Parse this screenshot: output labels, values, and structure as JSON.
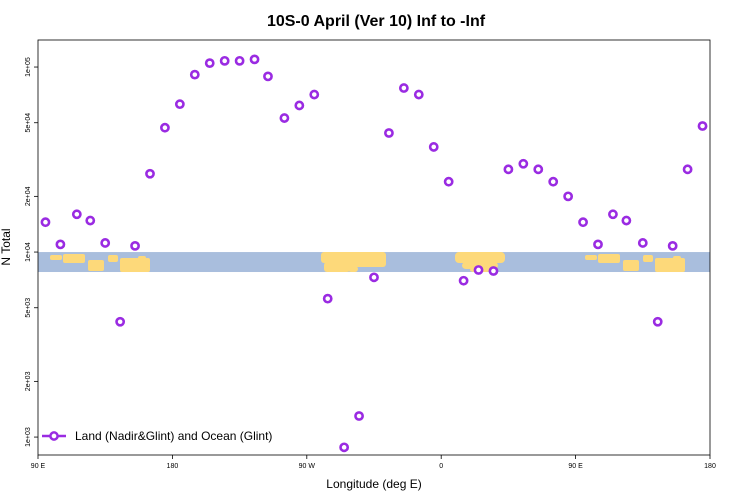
{
  "chart_data": {
    "type": "scatter",
    "title": "10S-0 April (Ver 10)   Inf to -Inf",
    "xlabel": "Longitude (deg E)",
    "ylabel": "N Total",
    "y_scale": "log",
    "xlim": [
      90,
      540
    ],
    "ylim": [
      800,
      140000
    ],
    "x_ticks": [
      {
        "value": 90,
        "label": "90 E"
      },
      {
        "value": 180,
        "label": "180"
      },
      {
        "value": 270,
        "label": "90 W"
      },
      {
        "value": 360,
        "label": "0"
      },
      {
        "value": 450,
        "label": "90 E"
      },
      {
        "value": 540,
        "label": "180"
      }
    ],
    "y_ticks": [
      {
        "value": 1000,
        "label": "1e+03"
      },
      {
        "value": 2000,
        "label": "2e+03"
      },
      {
        "value": 5000,
        "label": "5e+03"
      },
      {
        "value": 10000,
        "label": "1e+04"
      },
      {
        "value": 20000,
        "label": "2e+04"
      },
      {
        "value": 50000,
        "label": "5e+04"
      },
      {
        "value": 100000,
        "label": "1e+05"
      }
    ],
    "grid": false,
    "legend_position": "bottom-left",
    "band": {
      "y_min": 7800,
      "y_max": 10000,
      "color": "#a9bedd",
      "land_color": "#fdd97a"
    },
    "series": [
      {
        "name": "Land (Nadir&Glint) and Ocean (Glint)",
        "color": "#9a2be2",
        "marker": "open-circle",
        "x": [
          95,
          105,
          116,
          125,
          135,
          145,
          155,
          165,
          175,
          185,
          195,
          205,
          215,
          225,
          235,
          244,
          255,
          265,
          275,
          284,
          295,
          305,
          315,
          325,
          335,
          345,
          355,
          365,
          375,
          385,
          395,
          405,
          415,
          425,
          435,
          445,
          455,
          465,
          475,
          484,
          495,
          505,
          515,
          525,
          535
        ],
        "y": [
          14500,
          11000,
          16000,
          14800,
          11200,
          4200,
          10800,
          26500,
          47000,
          63000,
          91000,
          105000,
          108000,
          108000,
          110000,
          89000,
          53000,
          62000,
          71000,
          5600,
          880,
          1300,
          7300,
          44000,
          77000,
          71000,
          37000,
          24000,
          7000,
          8000,
          7900,
          28000,
          30000,
          28000,
          24000,
          20000,
          14500,
          11000,
          16000,
          14800,
          11200,
          4200,
          10800,
          28000,
          48000
        ]
      }
    ]
  }
}
